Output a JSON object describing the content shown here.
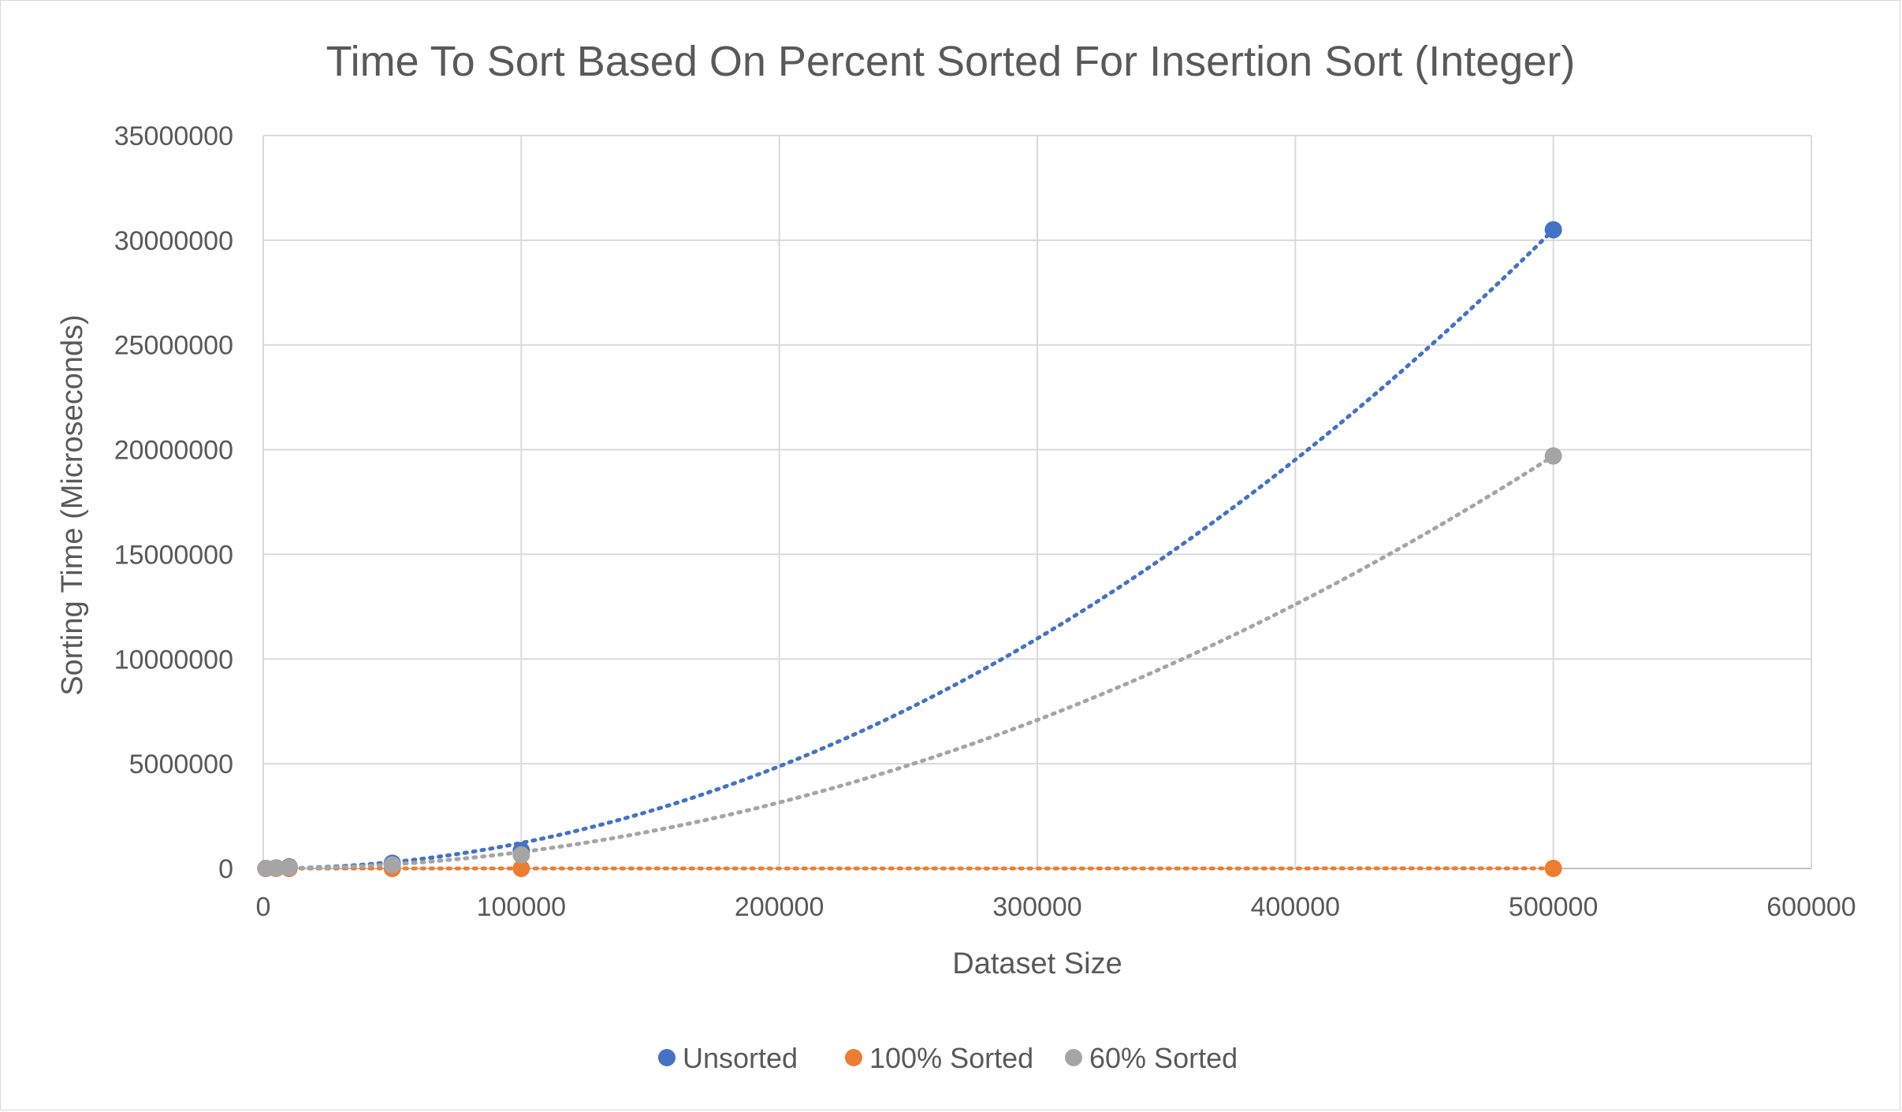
{
  "chart_data": {
    "type": "scatter",
    "title": "Time To Sort Based On Percent Sorted For Insertion Sort (Integer)",
    "xlabel": "Dataset Size",
    "ylabel": "Sorting Time (Microseconds)",
    "xlim": [
      0,
      600000
    ],
    "ylim": [
      0,
      35000000
    ],
    "xticks": [
      0,
      100000,
      200000,
      300000,
      400000,
      500000,
      600000
    ],
    "yticks": [
      0,
      5000000,
      10000000,
      15000000,
      20000000,
      25000000,
      30000000,
      35000000
    ],
    "grid": true,
    "legend_position": "bottom",
    "trendline": "polynomial (order 2), dotted",
    "series": [
      {
        "name": "Unsorted",
        "color": "#4472C4",
        "x": [
          1000,
          5000,
          10000,
          50000,
          100000,
          500000
        ],
        "y": [
          1000,
          25000,
          80000,
          250000,
          850000,
          30500000
        ],
        "trend_coeffs": [
          0.000122,
          0,
          0
        ]
      },
      {
        "name": "100% Sorted",
        "color": "#ED7D31",
        "x": [
          1000,
          5000,
          10000,
          50000,
          100000,
          500000
        ],
        "y": [
          10,
          30,
          60,
          300,
          600,
          3000
        ],
        "trend_coeffs": [
          0,
          0.006,
          0
        ]
      },
      {
        "name": "60% Sorted",
        "color": "#A5A5A5",
        "x": [
          1000,
          5000,
          10000,
          50000,
          100000,
          500000
        ],
        "y": [
          600,
          15000,
          50000,
          170000,
          650000,
          19700000
        ],
        "trend_coeffs": [
          7.88e-05,
          0,
          0
        ]
      }
    ]
  }
}
